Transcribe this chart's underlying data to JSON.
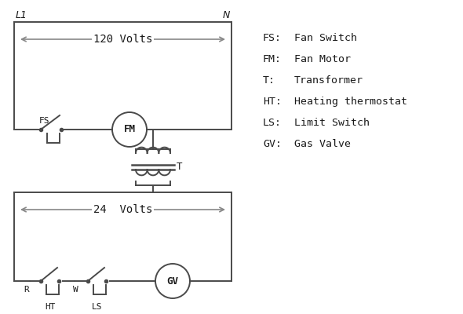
{
  "bg_color": "#ffffff",
  "line_color": "#4a4a4a",
  "text_color": "#1a1a1a",
  "arrow_color": "#888888",
  "fig_width": 5.9,
  "fig_height": 4.0,
  "legend": [
    [
      "FS:",
      "Fan Switch"
    ],
    [
      "FM:",
      "Fan Motor"
    ],
    [
      "T:",
      "Transformer"
    ],
    [
      "HT:",
      "Heating thermostat"
    ],
    [
      "LS:",
      "Limit Switch"
    ],
    [
      "GV:",
      "Gas Valve"
    ]
  ],
  "L1_label": "L1",
  "N_label": "N",
  "volts120": "120 Volts",
  "volts24": "24  Volts",
  "R_label": "R",
  "W_label": "W",
  "HT_label": "HT",
  "LS_label": "LS",
  "T_label": "T"
}
